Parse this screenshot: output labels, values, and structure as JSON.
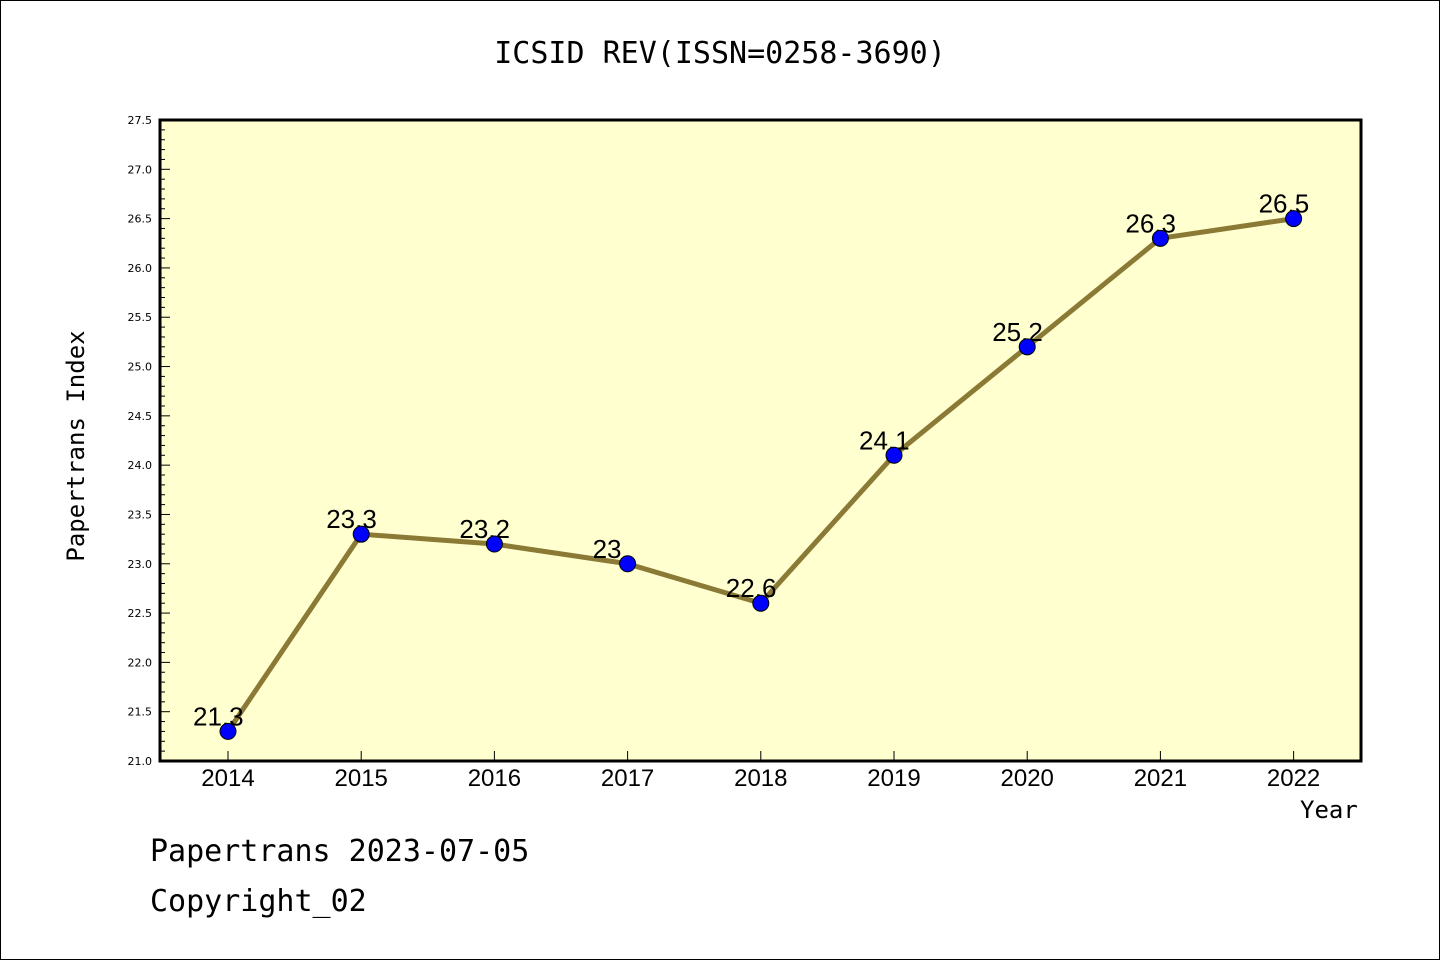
{
  "chart_data": {
    "type": "line",
    "title": "ICSID REV(ISSN=0258-3690)",
    "xlabel": "Year",
    "ylabel": "Papertrans Index",
    "categories": [
      "2014",
      "2015",
      "2016",
      "2017",
      "2018",
      "2019",
      "2020",
      "2021",
      "2022"
    ],
    "series": [
      {
        "values": [
          21.3,
          23.3,
          23.2,
          23.0,
          22.6,
          24.1,
          25.2,
          26.3,
          26.5
        ],
        "data_labels": [
          "21.3",
          "23.3",
          "23.2",
          "23",
          "22.6",
          "24.1",
          "25.2",
          "26.3",
          "26.5"
        ]
      }
    ],
    "ylim": [
      21.0,
      27.5
    ],
    "y_ticks": [
      "21.0",
      "21.5",
      "22.0",
      "22.5",
      "23.0",
      "23.5",
      "24.0",
      "24.5",
      "25.0",
      "25.5",
      "26.0",
      "26.5",
      "27.0",
      "27.5"
    ],
    "colors": {
      "plot_background": "#ffffd0",
      "line": "#8b7a35",
      "marker": "#0000ff"
    },
    "grid": false,
    "legend": "none"
  },
  "footer": {
    "line1": "Papertrans 2023-07-05",
    "line2": "Copyright_02"
  }
}
